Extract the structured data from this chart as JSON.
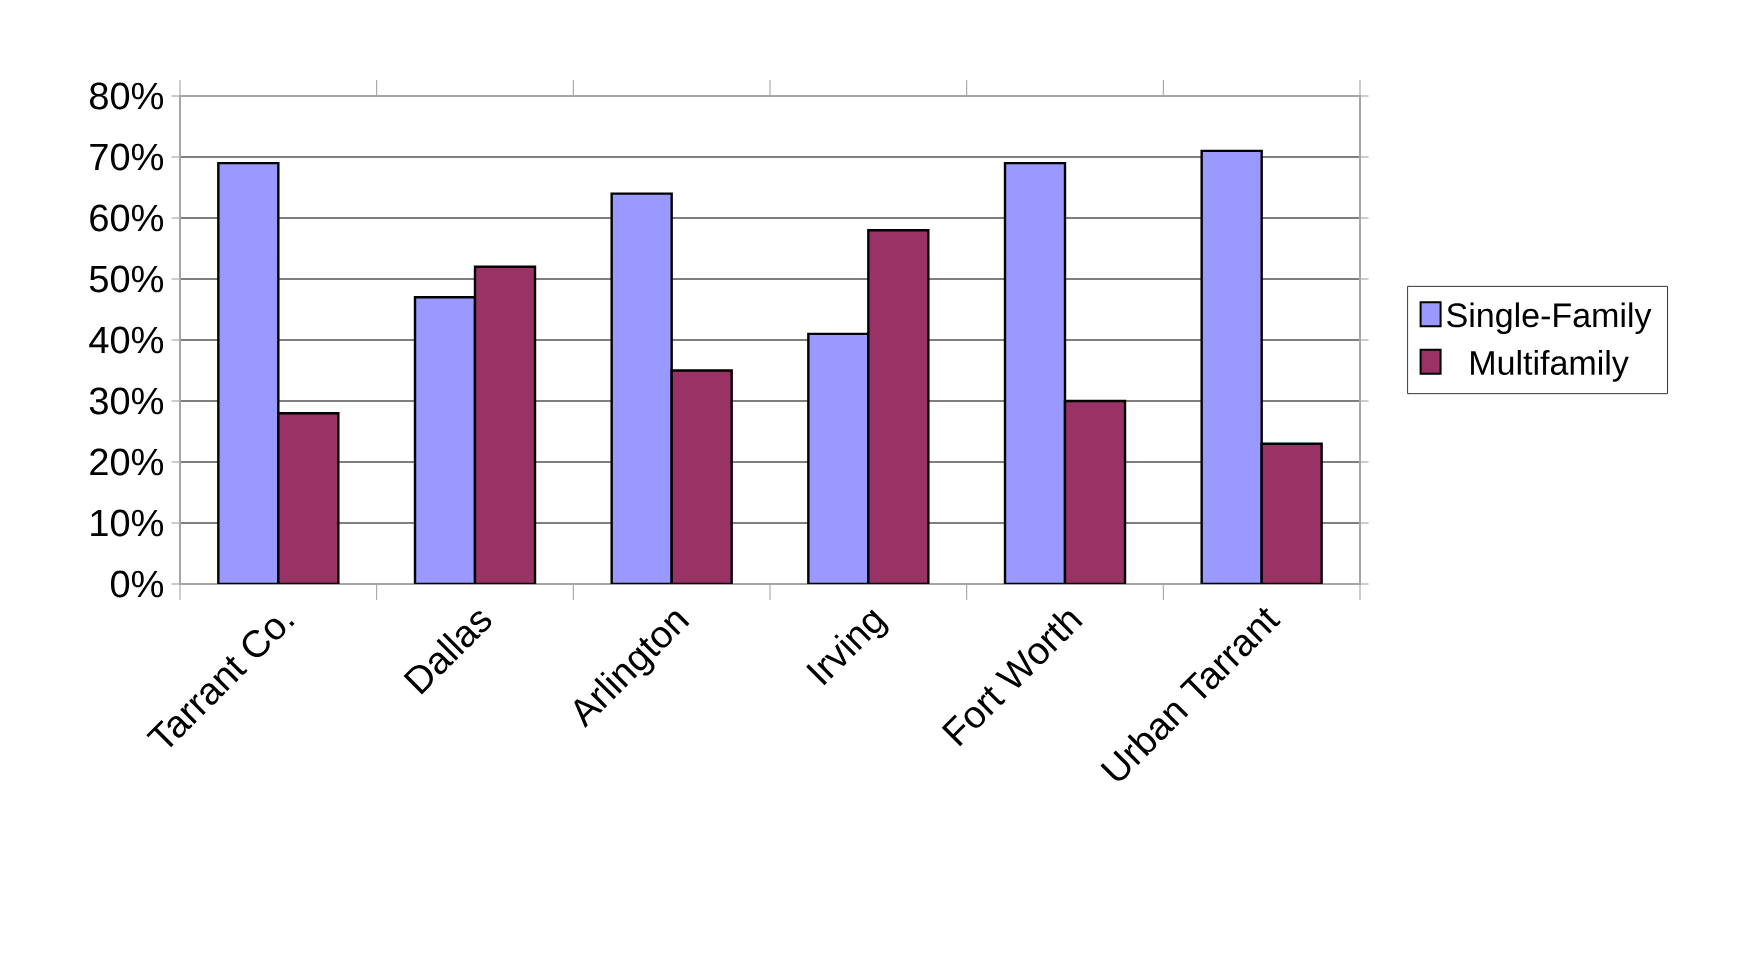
{
  "chart_data": {
    "type": "bar",
    "categories": [
      "Tarrant Co.",
      "Dallas",
      "Arlington",
      "Irving",
      "Fort Worth",
      "Urban Tarrant"
    ],
    "series": [
      {
        "name": "Single-Family",
        "color": "#9999ff",
        "values": [
          69,
          47,
          64,
          41,
          69,
          71
        ]
      },
      {
        "name": "Multifamily",
        "color": "#993366",
        "values": [
          28,
          52,
          35,
          58,
          30,
          23
        ]
      }
    ],
    "ylim": [
      0,
      80
    ],
    "yticks": [
      {
        "value": 0,
        "label": "0%"
      },
      {
        "value": 10,
        "label": "10%"
      },
      {
        "value": 20,
        "label": "20%"
      },
      {
        "value": 30,
        "label": "30%"
      },
      {
        "value": 40,
        "label": "40%"
      },
      {
        "value": 50,
        "label": "50%"
      },
      {
        "value": 60,
        "label": "60%"
      },
      {
        "value": 70,
        "label": "70%"
      },
      {
        "value": 80,
        "label": "80%"
      }
    ],
    "grid": "y",
    "legend": "right"
  }
}
